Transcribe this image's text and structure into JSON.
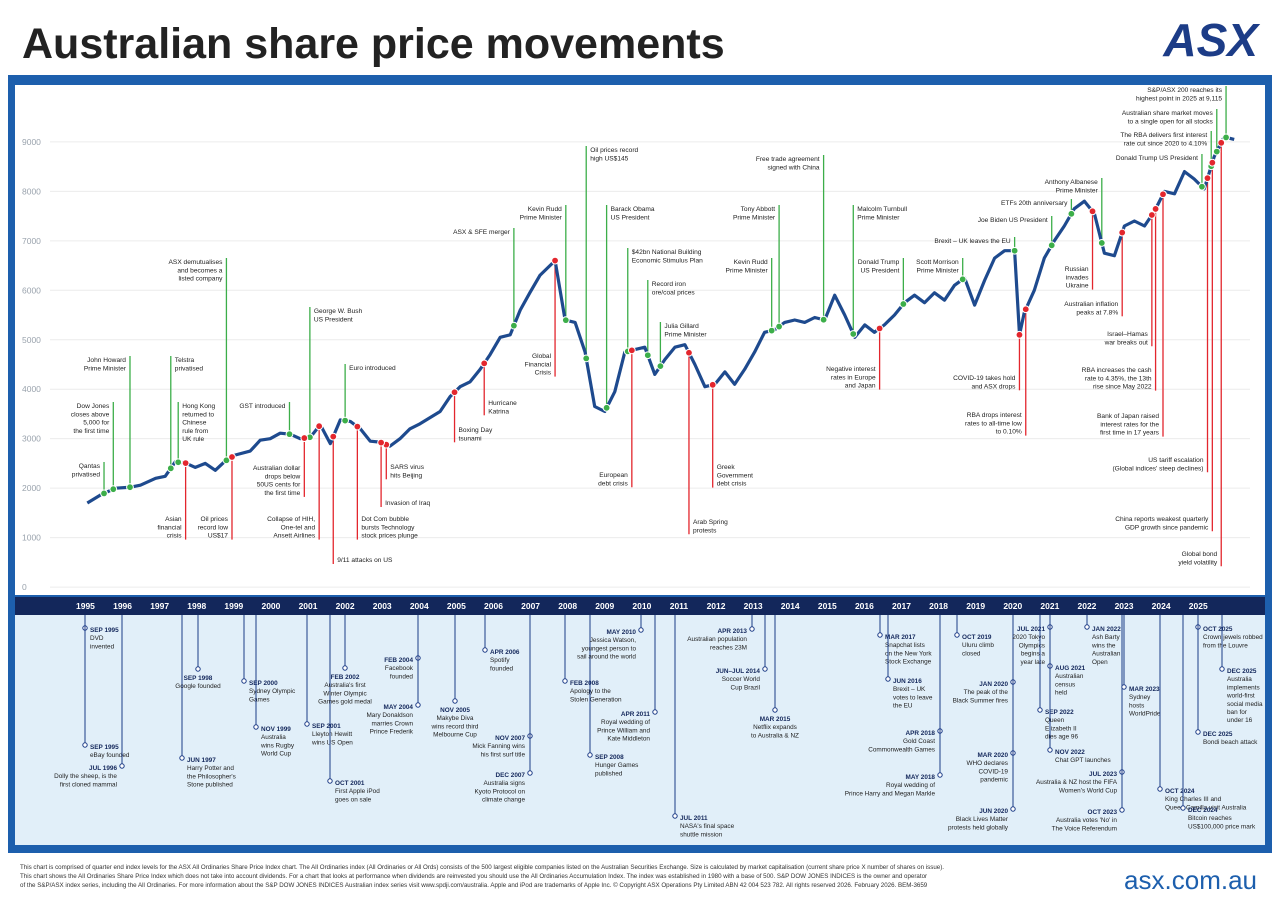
{
  "header": {
    "title": "Australian share price movements",
    "logo": "ASX"
  },
  "chart_data": {
    "type": "line",
    "color": "#1e4a8e",
    "grid": true,
    "xlim": [
      1993.1,
      2026.8
    ],
    "ylim": [
      -160,
      10150
    ],
    "yticks": [
      0,
      1000,
      2000,
      3000,
      4000,
      5000,
      6000,
      7000,
      8000,
      9000
    ],
    "xticks": [
      1995,
      1996,
      1997,
      1998,
      1999,
      2000,
      2001,
      2002,
      2003,
      2004,
      2005,
      2006,
      2007,
      2008,
      2009,
      2010,
      2011,
      2012,
      2013,
      2014,
      2015,
      2016,
      2017,
      2018,
      2019,
      2020,
      2021,
      2022,
      2023,
      2024,
      2025
    ],
    "x": [
      1995.05,
      1995.4,
      1995.81,
      1996.21,
      1996.48,
      1996.89,
      1997.15,
      1997.42,
      1997.69,
      1997.96,
      1998.23,
      1998.5,
      1998.77,
      1999.04,
      1999.44,
      1999.71,
      1999.98,
      2000.25,
      2000.52,
      2000.79,
      2001.06,
      2001.33,
      2001.6,
      2001.87,
      2002.14,
      2002.41,
      2002.68,
      2002.94,
      2003.21,
      2003.48,
      2003.75,
      2004.02,
      2004.56,
      2004.83,
      2005.1,
      2005.37,
      2005.64,
      2005.91,
      2006.18,
      2006.45,
      2006.72,
      2006.98,
      2007.25,
      2007.66,
      2007.93,
      2008.2,
      2008.47,
      2008.73,
      2009.0,
      2009.27,
      2009.54,
      2009.81,
      2010.08,
      2010.35,
      2010.62,
      2010.89,
      2011.16,
      2011.43,
      2011.7,
      2011.97,
      2012.24,
      2012.5,
      2012.77,
      2013.04,
      2013.31,
      2013.58,
      2013.85,
      2014.12,
      2014.39,
      2014.66,
      2014.93,
      2015.2,
      2015.47,
      2015.74,
      2016.01,
      2016.27,
      2016.54,
      2016.81,
      2017.08,
      2017.35,
      2017.62,
      2017.89,
      2018.16,
      2018.43,
      2018.7,
      2018.97,
      2019.24,
      2019.51,
      2019.78,
      2020.05,
      2020.18,
      2020.31,
      2020.58,
      2020.85,
      2021.12,
      2021.39,
      2021.66,
      2021.93,
      2022.2,
      2022.47,
      2022.74,
      2023.01,
      2023.28,
      2023.55,
      2023.82,
      2024.09,
      2024.36,
      2024.63,
      2024.89,
      2025.16,
      2025.43,
      2025.7,
      2025.97
    ],
    "values": [
      1700,
      1860,
      2000,
      2020,
      2060,
      2200,
      2240,
      2530,
      2510,
      2420,
      2500,
      2360,
      2550,
      2670,
      2750,
      2970,
      3000,
      3110,
      3090,
      3000,
      3030,
      3280,
      2900,
      3380,
      3350,
      3200,
      2950,
      2930,
      2850,
      3000,
      3200,
      3300,
      3550,
      3850,
      4050,
      4150,
      4400,
      4700,
      5050,
      5100,
      5600,
      5950,
      6300,
      6600,
      5400,
      5350,
      4750,
      3650,
      3550,
      3950,
      4750,
      4800,
      4850,
      4300,
      4600,
      4850,
      4900,
      4500,
      4050,
      4100,
      4350,
      4100,
      4400,
      4750,
      5150,
      5200,
      5350,
      5400,
      5350,
      5450,
      5400,
      5900,
      5500,
      5050,
      5300,
      5150,
      5300,
      5500,
      5750,
      5900,
      5750,
      5950,
      5800,
      6100,
      6250,
      5700,
      6200,
      6650,
      6800,
      6800,
      5100,
      5550,
      6000,
      6650,
      7000,
      7300,
      7650,
      7800,
      7550,
      6750,
      6700,
      7300,
      7400,
      7300,
      7600,
      8000,
      7950,
      8400,
      8250,
      8050,
      8700,
      9100,
      9050
    ],
    "annotation_colors": {
      "up": "#3cae49",
      "down": "#e3262d"
    },
    "annotations": [
      {
        "text": [
          "Qantas",
          "privatised"
        ],
        "x": 1995.5,
        "direction": "up"
      },
      {
        "text": [
          "Dow Jones",
          "closes above",
          "5,000 for",
          "the first time"
        ],
        "x": 1995.75,
        "direction": "up"
      },
      {
        "text": [
          "John Howard",
          "Prime Minister"
        ],
        "x": 1996.2,
        "direction": "up"
      },
      {
        "text": [
          "Telstra",
          "privatised"
        ],
        "x": 1997.3,
        "direction": "up"
      },
      {
        "text": [
          "Hong Kong",
          "returned to",
          "Chinese",
          "rule from",
          "UK rule"
        ],
        "x": 1997.5,
        "direction": "up"
      },
      {
        "text": [
          "ASX demutualises",
          "and becomes a",
          "listed company"
        ],
        "x": 1998.8,
        "direction": "up"
      },
      {
        "text": [
          "GST introduced"
        ],
        "x": 2000.5,
        "direction": "up"
      },
      {
        "text": [
          "George W. Bush",
          "US President"
        ],
        "x": 2001.05,
        "direction": "up"
      },
      {
        "text": [
          "Euro introduced"
        ],
        "x": 2002.0,
        "direction": "up"
      },
      {
        "text": [
          "ASX & SFE merger"
        ],
        "x": 2006.55,
        "direction": "up"
      },
      {
        "text": [
          "Kevin Rudd",
          "Prime Minister"
        ],
        "x": 2007.95,
        "direction": "up"
      },
      {
        "text": [
          "Oil prices record",
          "high US$145"
        ],
        "x": 2008.5,
        "direction": "up"
      },
      {
        "text": [
          "Barack Obama",
          "US President"
        ],
        "x": 2009.05,
        "direction": "up"
      },
      {
        "text": [
          "$42bn National Building",
          "Economic Stimulus Plan"
        ],
        "x": 2009.62,
        "direction": "up"
      },
      {
        "text": [
          "Record iron",
          "ore/coal prices"
        ],
        "x": 2010.16,
        "direction": "up"
      },
      {
        "text": [
          "Julia Gillard",
          "Prime Minister"
        ],
        "x": 2010.5,
        "direction": "up"
      },
      {
        "text": [
          "Kevin Rudd",
          "Prime Minister"
        ],
        "x": 2013.5,
        "direction": "up"
      },
      {
        "text": [
          "Tony Abbott",
          "Prime Minister"
        ],
        "x": 2013.7,
        "direction": "up"
      },
      {
        "text": [
          "Free trade agreement",
          "signed with China"
        ],
        "x": 2014.9,
        "direction": "up"
      },
      {
        "text": [
          "Malcolm Turnbull",
          "Prime Minister"
        ],
        "x": 2015.7,
        "direction": "up"
      },
      {
        "text": [
          "Donald Trump",
          "US President"
        ],
        "x": 2017.05,
        "direction": "up"
      },
      {
        "text": [
          "Scott Morrison",
          "Prime Minister"
        ],
        "x": 2018.65,
        "direction": "up"
      },
      {
        "text": [
          "Brexit – UK leaves the EU"
        ],
        "x": 2020.05,
        "direction": "up"
      },
      {
        "text": [
          "Joe Biden US President"
        ],
        "x": 2021.05,
        "direction": "up"
      },
      {
        "text": [
          "ETFs 20th anniversary"
        ],
        "x": 2021.58,
        "direction": "up"
      },
      {
        "text": [
          "Anthony Albanese",
          "Prime Minister"
        ],
        "x": 2022.4,
        "direction": "up"
      },
      {
        "text": [
          "Donald Trump US President"
        ],
        "x": 2025.1,
        "direction": "up"
      },
      {
        "text": [
          "The RBA delivers first interest",
          "rate cut since 2020 to 4.10%"
        ],
        "x": 2025.35,
        "direction": "up"
      },
      {
        "text": [
          "Australian share market moves",
          "to a single open for all stocks"
        ],
        "x": 2025.5,
        "direction": "up"
      },
      {
        "text": [
          "S&P/ASX 200 reaches its",
          "highest point in 2025 at 9,115"
        ],
        "x": 2025.75,
        "direction": "up"
      },
      {
        "text": [
          "Asian",
          "financial",
          "crisis"
        ],
        "x": 1997.7,
        "direction": "down"
      },
      {
        "text": [
          "Oil prices",
          "record low",
          "US$17"
        ],
        "x": 1998.95,
        "direction": "down"
      },
      {
        "text": [
          "Australian dollar",
          "drops below",
          "50US cents for",
          "the first time"
        ],
        "x": 2000.9,
        "direction": "down"
      },
      {
        "text": [
          "Collapse of HIH,",
          "One-tel and",
          "Ansett Airlines"
        ],
        "x": 2001.3,
        "direction": "down"
      },
      {
        "text": [
          "9/11 attacks on US"
        ],
        "x": 2001.68,
        "direction": "down"
      },
      {
        "text": [
          "Dot Com bubble",
          "bursts Technology",
          "stock prices plunge"
        ],
        "x": 2002.33,
        "direction": "down"
      },
      {
        "text": [
          "SARS virus",
          "hits Beijing"
        ],
        "x": 2003.11,
        "direction": "down"
      },
      {
        "text": [
          "Invasion of Iraq"
        ],
        "x": 2002.97,
        "direction": "down"
      },
      {
        "text": [
          "Boxing Day",
          "tsunami"
        ],
        "x": 2004.95,
        "direction": "down"
      },
      {
        "text": [
          "Hurricane",
          "Katrina"
        ],
        "x": 2005.75,
        "direction": "down"
      },
      {
        "text": [
          "Global",
          "Financial",
          "Crisis"
        ],
        "x": 2007.66,
        "direction": "down"
      },
      {
        "text": [
          "European",
          "debt crisis"
        ],
        "x": 2009.73,
        "direction": "down"
      },
      {
        "text": [
          "Arab Spring",
          "protests"
        ],
        "x": 2011.27,
        "direction": "down"
      },
      {
        "text": [
          "Greek",
          "Government",
          "debt crisis"
        ],
        "x": 2011.91,
        "direction": "down"
      },
      {
        "text": [
          "Negative interest",
          "rates in Europe",
          "and Japan"
        ],
        "x": 2016.41,
        "direction": "down"
      },
      {
        "text": [
          "COVID-19 takes hold",
          "and ASX drops"
        ],
        "x": 2020.18,
        "direction": "down"
      },
      {
        "text": [
          "RBA drops interest",
          "rates to all-time low",
          "to 0.10%"
        ],
        "x": 2020.35,
        "direction": "down"
      },
      {
        "text": [
          "Russian",
          "invades",
          "Ukraine"
        ],
        "x": 2022.15,
        "direction": "down"
      },
      {
        "text": [
          "Australian inflation",
          "peaks at 7.8%"
        ],
        "x": 2022.95,
        "direction": "down"
      },
      {
        "text": [
          "Israel–Hamas",
          "war breaks out"
        ],
        "x": 2023.75,
        "direction": "down"
      },
      {
        "text": [
          "RBA increases the cash",
          "rate to 4.35%, the 13th",
          "rise since May 2022"
        ],
        "x": 2023.85,
        "direction": "down"
      },
      {
        "text": [
          "Bank of Japan raised",
          "interest rates for the",
          "first time in 17 years"
        ],
        "x": 2024.05,
        "direction": "down"
      },
      {
        "text": [
          "US tariff escalation",
          "(Global indices' steep declines)"
        ],
        "x": 2025.25,
        "direction": "down"
      },
      {
        "text": [
          "China reports weakest quarterly",
          "GDP growth since pandemic"
        ],
        "x": 2025.38,
        "direction": "down"
      },
      {
        "text": [
          "Global bond",
          "yield volatility"
        ],
        "x": 2025.62,
        "direction": "down"
      }
    ]
  },
  "timeline": {
    "events": [
      {
        "date": "SEP 1995",
        "text": [
          "DVD",
          "invented"
        ]
      },
      {
        "date": "SEP 1995",
        "text": [
          "eBay founded"
        ]
      },
      {
        "date": "JUL 1996",
        "text": [
          "Dolly the sheep, is the",
          "first cloned mammal"
        ]
      },
      {
        "date": "JUN 1997",
        "text": [
          "Harry Potter and",
          "the Philosopher's",
          "Stone published"
        ]
      },
      {
        "date": "SEP 1998",
        "text": [
          "Google founded"
        ]
      },
      {
        "date": "SEP 2000",
        "text": [
          "Sydney Olympic",
          "Games"
        ]
      },
      {
        "date": "NOV 1999",
        "text": [
          "Australia",
          "wins Rugby",
          "World Cup"
        ]
      },
      {
        "date": "SEP 2001",
        "text": [
          "Lleyton Hewitt",
          "wins US Open"
        ]
      },
      {
        "date": "OCT 2001",
        "text": [
          "First Apple iPod",
          "goes on sale"
        ]
      },
      {
        "date": "FEB 2002",
        "text": [
          "Australia's first",
          "Winter Olympic",
          "Games gold medal"
        ]
      },
      {
        "date": "FEB 2004",
        "text": [
          "Facebook",
          "founded"
        ]
      },
      {
        "date": "MAY 2004",
        "text": [
          "Mary Donaldson",
          "marries Crown",
          "Prince Frederik"
        ]
      },
      {
        "date": "NOV 2005",
        "text": [
          "Makybe Diva",
          "wins record third",
          "Melbourne Cup"
        ]
      },
      {
        "date": "APR 2006",
        "text": [
          "Spotify",
          "founded"
        ]
      },
      {
        "date": "NOV 2007",
        "text": [
          "Mick Fanning wins",
          "his first surf title"
        ]
      },
      {
        "date": "DEC 2007",
        "text": [
          "Australia signs",
          "Kyoto Protocol on",
          "climate change"
        ]
      },
      {
        "date": "FEB 2008",
        "text": [
          "Apology to the",
          "Stolen Generation"
        ]
      },
      {
        "date": "SEP 2008",
        "text": [
          "Hunger Games",
          "published"
        ]
      },
      {
        "date": "MAY 2010",
        "text": [
          "Jessica Watson,",
          "youngest person to",
          "sail around the world"
        ]
      },
      {
        "date": "APR 2011",
        "text": [
          "Royal wedding of",
          "Prince William and",
          "Kate Middleton"
        ]
      },
      {
        "date": "JUL 2011",
        "text": [
          "NASA's final space",
          "shuttle mission"
        ]
      },
      {
        "date": "APR 2013",
        "text": [
          "Australian population",
          "reaches 23M"
        ]
      },
      {
        "date": "JUN–JUL 2014",
        "text": [
          "Soccer World",
          "Cup Brazil"
        ]
      },
      {
        "date": "MAR 2015",
        "text": [
          "Netflix expands",
          "to Australia & NZ"
        ]
      },
      {
        "date": "MAR 2017",
        "text": [
          "Snapchat lists",
          "on the New York",
          "Stock Exchange"
        ]
      },
      {
        "date": "JUN 2016",
        "text": [
          "Brexit – UK",
          "votes to leave",
          "the EU"
        ]
      },
      {
        "date": "APR 2018",
        "text": [
          "Gold Coast",
          "Commonwealth Games"
        ]
      },
      {
        "date": "MAY 2018",
        "text": [
          "Royal wedding of",
          "Prince Harry and Megan Markle"
        ]
      },
      {
        "date": "OCT 2019",
        "text": [
          "Uluru climb",
          "closed"
        ]
      },
      {
        "date": "JAN 2020",
        "text": [
          "The peak of the",
          "Black Summer fires"
        ]
      },
      {
        "date": "MAR 2020",
        "text": [
          "WHO declares",
          "COVID-19",
          "pandemic"
        ]
      },
      {
        "date": "JUN 2020",
        "text": [
          "Black Lives Matter",
          "protests held globally"
        ]
      },
      {
        "date": "JUL 2021",
        "text": [
          "2020 Tokyo",
          "Olympics",
          "begins a",
          "year late"
        ]
      },
      {
        "date": "AUG 2021",
        "text": [
          "Australian",
          "census",
          "held"
        ]
      },
      {
        "date": "SEP 2022",
        "text": [
          "Queen",
          "Elizabeth II",
          "dies age 96"
        ]
      },
      {
        "date": "NOV 2022",
        "text": [
          "Chat GPT launches"
        ]
      },
      {
        "date": "JAN 2022",
        "text": [
          "Ash Barty",
          "wins the",
          "Australian",
          "Open"
        ]
      },
      {
        "date": "JUL 2023",
        "text": [
          "Australia & NZ host the FIFA",
          "Women's World Cup"
        ]
      },
      {
        "date": "OCT 2023",
        "text": [
          "Australia votes 'No' in",
          "The Voice Referendum"
        ]
      },
      {
        "date": "MAR 2023",
        "text": [
          "Sydney",
          "hosts",
          "WorldPride"
        ]
      },
      {
        "date": "OCT 2024",
        "text": [
          "King Charles III and",
          "Queen Camilla visit Australia"
        ]
      },
      {
        "date": "DEC 2024",
        "text": [
          "Bitcoin reaches",
          "US$100,000 price mark"
        ]
      },
      {
        "date": "OCT 2025",
        "text": [
          "Crown jewels robbed",
          "from the Louvre"
        ]
      },
      {
        "date": "DEC 2025",
        "text": [
          "Australia",
          "implements",
          "world-first",
          "social media",
          "ban for",
          "under 16"
        ]
      },
      {
        "date": "DEC 2025",
        "text": [
          "Bondi beach attack"
        ]
      }
    ]
  },
  "footer": {
    "notes": [
      "This chart is comprised of quarter end index levels for the ASX All Ordinaries Share Price Index chart. The All Ordinaries index (All Ordinaries or All Ords) consists of the 500 largest eligible companies listed on the Australian Securities Exchange. Size is calculated by market capitalisation (current share price X number of shares on issue).",
      "This chart shows the All Ordinaries Share Price Index which does not take into account dividends. For a chart that looks at performance when dividends are reinvested you should use the All Ordinaries Accumulation Index. The index was established in 1980 with a base of 500. S&P DOW JONES INDICES is the owner and operator",
      "of the S&P/ASX index series, including the All Ordinaries. For more information about the S&P DOW JONES INDICES Australian index series visit www.spdji.com/australia. Apple and iPod are trademarks of Apple Inc. © Copyright ASX Operations Pty Limited ABN 42 004 523 782. All rights reserved 2026. February 2026. BEM-3659"
    ],
    "url": "asx.com.au"
  }
}
